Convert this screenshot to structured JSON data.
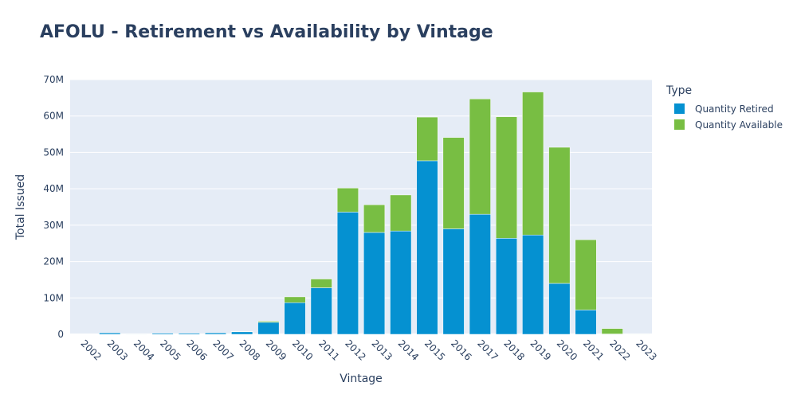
{
  "chart_data": {
    "type": "bar",
    "barmode": "stack",
    "title": "AFOLU - Retirement vs Availability by Vintage",
    "xlabel": "Vintage",
    "ylabel": "Total Issued",
    "categories": [
      "2002",
      "2003",
      "2004",
      "2005",
      "2006",
      "2007",
      "2008",
      "2009",
      "2010",
      "2011",
      "2012",
      "2013",
      "2014",
      "2015",
      "2016",
      "2017",
      "2018",
      "2019",
      "2020",
      "2021",
      "2022",
      "2023"
    ],
    "series": [
      {
        "name": "Quantity Retired",
        "color": "#0591d1",
        "values": [
          0,
          0.4,
          0.1,
          0.3,
          0.3,
          0.4,
          0.7,
          3.3,
          8.7,
          12.8,
          33.6,
          28.0,
          28.4,
          47.7,
          29.0,
          33.0,
          26.4,
          27.3,
          14.0,
          6.7,
          0.1,
          0
        ]
      },
      {
        "name": "Quantity Available",
        "color": "#78be43",
        "values": [
          0,
          0,
          0,
          0,
          0,
          0,
          0.1,
          0.3,
          1.6,
          2.4,
          6.6,
          7.6,
          9.9,
          12.0,
          25.1,
          31.7,
          33.4,
          39.3,
          37.4,
          19.3,
          1.5,
          0.1
        ]
      }
    ],
    "ylim": [
      0,
      70
    ],
    "yticks": [
      0,
      10,
      20,
      30,
      40,
      50,
      60,
      70
    ],
    "ytick_labels": [
      "0",
      "10M",
      "20M",
      "30M",
      "40M",
      "50M",
      "60M",
      "70M"
    ],
    "value_unit": "millions",
    "grid": true,
    "legend": {
      "title": "Type",
      "placement": "top-right"
    },
    "colors": {
      "plot_background": "#e5ecf6",
      "gridline": "#ffffff",
      "text": "#2a3f5f"
    }
  }
}
